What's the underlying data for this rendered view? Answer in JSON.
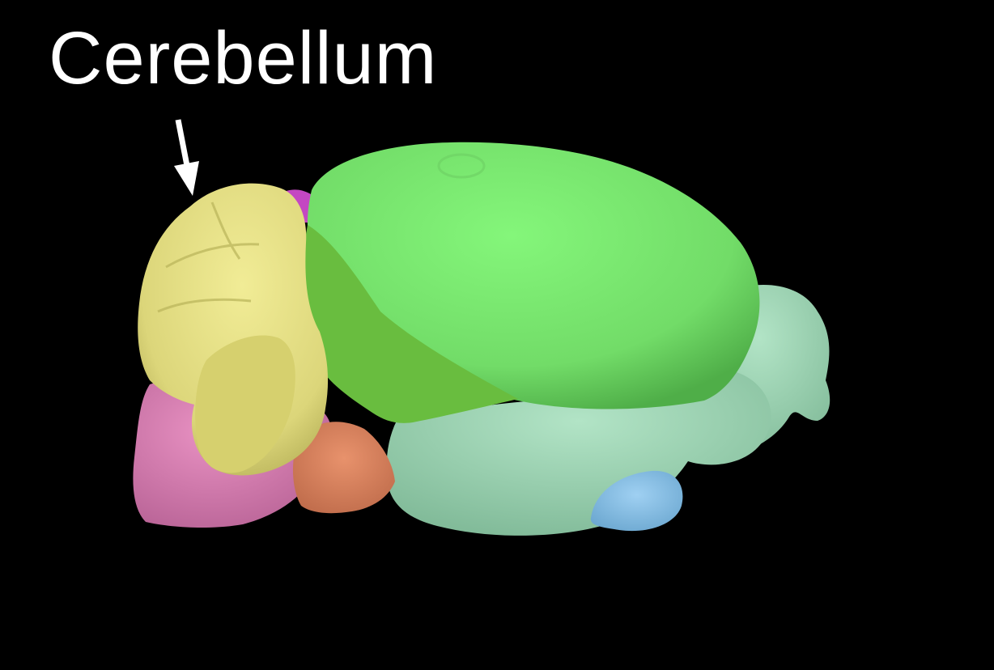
{
  "annotation": {
    "label": "Cerebellum"
  },
  "colors": {
    "background": "#000000",
    "label_text": "#ffffff",
    "arrow": "#ffffff",
    "cerebellum": "#e4e07e",
    "cerebral_cortex": "#78e26e",
    "cortex_lateral": "#66b83c",
    "olfactory_and_ventral": "#9fd3b2",
    "medulla": "#d97ab3",
    "pons": "#d9835c",
    "midbrain": "#c447c2",
    "hypothalamus": "#86bde6"
  }
}
